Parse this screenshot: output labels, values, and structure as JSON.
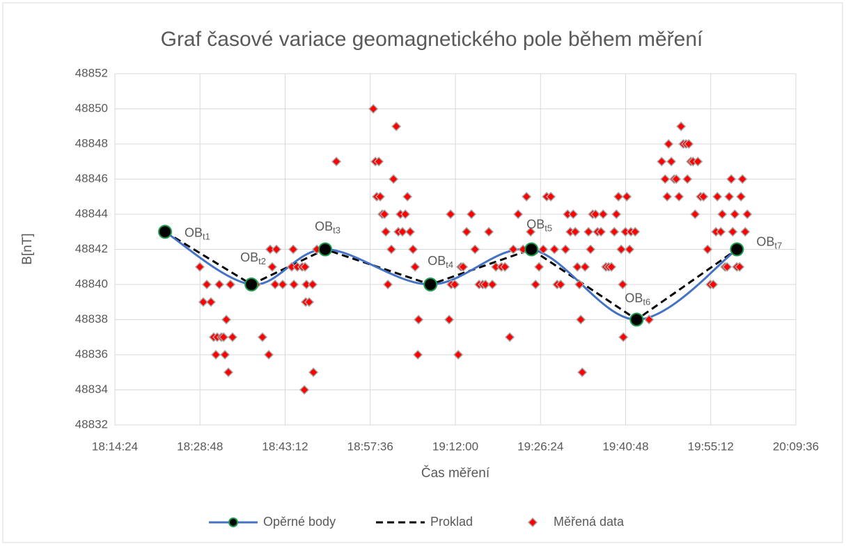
{
  "chart_data": {
    "type": "scatter",
    "title": "Graf časové variace geomagnetického pole během měření",
    "x_label": "Čas měření",
    "y_label": "B[nT]",
    "xlim": [
      65664,
      72576
    ],
    "xticks": [
      {
        "value": 65664,
        "label": "18:14:24"
      },
      {
        "value": 66528,
        "label": "18:28:48"
      },
      {
        "value": 67392,
        "label": "18:43:12"
      },
      {
        "value": 68256,
        "label": "18:57:36"
      },
      {
        "value": 69120,
        "label": "19:12:00"
      },
      {
        "value": 69984,
        "label": "19:26:24"
      },
      {
        "value": 70848,
        "label": "19:40:48"
      },
      {
        "value": 71712,
        "label": "19:55:12"
      },
      {
        "value": 72576,
        "label": "20:09:36"
      }
    ],
    "ylim": [
      48832,
      48852
    ],
    "yticks": [
      48832,
      48834,
      48836,
      48838,
      48840,
      48842,
      48844,
      48846,
      48848,
      48850,
      48852
    ],
    "grid": true,
    "legend": "bottom",
    "series": [
      {
        "name": "Opěrné body",
        "color": "#4472c4",
        "style": "smooth-line-markers",
        "marker_color": "#000000",
        "marker_edge": "#1e9e4a",
        "x": [
          66173,
          67050,
          67799,
          68867,
          69892,
          70960,
          71978
        ],
        "values": [
          48843,
          48840,
          48842,
          48840,
          48842,
          48838,
          48842
        ],
        "point_labels": [
          {
            "text": "OB",
            "sub": "t1"
          },
          {
            "text": "OB",
            "sub": "t2"
          },
          {
            "text": "OB",
            "sub": "t3"
          },
          {
            "text": "OB",
            "sub": "t4"
          },
          {
            "text": "OB",
            "sub": "t5"
          },
          {
            "text": "OB",
            "sub": "t6"
          },
          {
            "text": "OB",
            "sub": "t7"
          }
        ]
      },
      {
        "name": "Proklad",
        "color": "#000000",
        "style": "dashed-line",
        "x": [
          66173,
          67050,
          67799,
          68867,
          69892,
          70960,
          71978
        ],
        "values": [
          48843,
          48840,
          48842,
          48840,
          48842,
          48838,
          48842
        ]
      },
      {
        "name": "Měřená data",
        "color": "#ff0000",
        "style": "diamond",
        "x": [
          66526,
          66561,
          66597,
          66639,
          66667,
          66689,
          66703,
          66724,
          66745,
          66767,
          66781,
          66795,
          66816,
          66837,
          66858,
          67099,
          67162,
          67226,
          67240,
          67261,
          67290,
          67304,
          67367,
          67459,
          67474,
          67481,
          67516,
          67565,
          67587,
          67594,
          67601,
          67608,
          67636,
          67671,
          67679,
          67714,
          67806,
          67912,
          68287,
          68308,
          68322,
          68343,
          68357,
          68378,
          68400,
          68414,
          68435,
          68470,
          68492,
          68520,
          68541,
          68562,
          68583,
          68612,
          68633,
          68661,
          68690,
          68711,
          68739,
          68746,
          68866,
          69057,
          69071,
          69078,
          69114,
          69149,
          69177,
          69199,
          69234,
          69283,
          69319,
          69361,
          69397,
          69425,
          69460,
          69495,
          69531,
          69587,
          69623,
          69672,
          69708,
          69757,
          69807,
          69842,
          69884,
          69934,
          69969,
          70012,
          70047,
          70089,
          70125,
          70153,
          70188,
          70238,
          70259,
          70287,
          70316,
          70337,
          70358,
          70379,
          70393,
          70408,
          70436,
          70471,
          70492,
          70514,
          70542,
          70563,
          70598,
          70620,
          70648,
          70676,
          70704,
          70733,
          70754,
          70775,
          70803,
          70818,
          70825,
          70846,
          70860,
          70888,
          70902,
          70945,
          70980,
          71086,
          71214,
          71249,
          71270,
          71284,
          71312,
          71341,
          71362,
          71390,
          71411,
          71433,
          71461,
          71475,
          71489,
          71510,
          71532,
          71553,
          71581,
          71609,
          71638,
          71680,
          71708,
          71737,
          71765,
          71779,
          71814,
          71829,
          71857,
          71878,
          71899,
          71920,
          71935,
          71956,
          71977,
          72005,
          72019,
          72034,
          72062,
          72083
        ],
        "values": [
          48841,
          48839,
          48840,
          48839,
          48837,
          48836,
          48837,
          48840,
          48837,
          48837,
          48836,
          48838,
          48835,
          48840,
          48837,
          48840,
          48837,
          48836,
          48842,
          48841,
          48840,
          48842,
          48840,
          48841,
          48842,
          48840,
          48841,
          48841,
          48834,
          48841,
          48839,
          48840,
          48839,
          48840,
          48835,
          48842,
          48842,
          48847,
          48850,
          48847,
          48845,
          48847,
          48845,
          48844,
          48844,
          48843,
          48840,
          48842,
          48846,
          48849,
          48843,
          48844,
          48843,
          48844,
          48845,
          48843,
          48842,
          48841,
          48836,
          48838,
          48840,
          48838,
          48844,
          48840,
          48840,
          48836,
          48841,
          48841,
          48843,
          48844,
          48842,
          48840,
          48840,
          48840,
          48843,
          48840,
          48841,
          48841,
          48841,
          48837,
          48842,
          48844,
          48842,
          48845,
          48843,
          48840,
          48841,
          48842,
          48845,
          48845,
          48842,
          48840,
          48840,
          48842,
          48844,
          48843,
          48844,
          48843,
          48841,
          48840,
          48838,
          48835,
          48841,
          48843,
          48842,
          48844,
          48844,
          48843,
          48843,
          48844,
          48841,
          48841,
          48841,
          48843,
          48844,
          48845,
          48842,
          48840,
          48837,
          48843,
          48845,
          48842,
          48843,
          48843,
          48838,
          48838,
          48847,
          48846,
          48845,
          48848,
          48847,
          48846,
          48846,
          48845,
          48849,
          48848,
          48848,
          48846,
          48848,
          48847,
          48847,
          48844,
          48847,
          48845,
          48845,
          48842,
          48840,
          48840,
          48843,
          48845,
          48843,
          48844,
          48841,
          48841,
          48845,
          48846,
          48843,
          48844,
          48841,
          48841,
          48845,
          48846,
          48843,
          48844
        ]
      }
    ]
  }
}
